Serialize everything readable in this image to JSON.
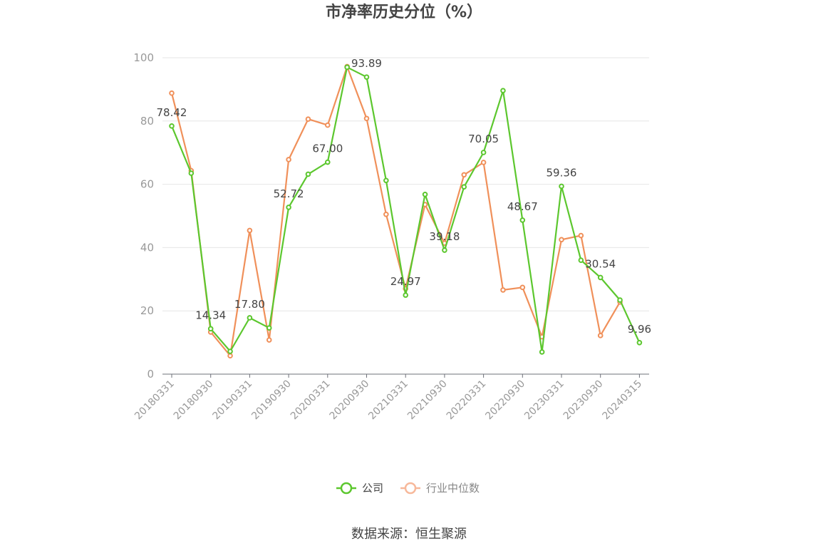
{
  "chart_data": {
    "type": "line",
    "title": "市净率历史分位（%）",
    "source": "数据来源：恒生聚源",
    "ylim": [
      0,
      100
    ],
    "y_ticks": [
      0,
      20,
      40,
      60,
      80,
      100
    ],
    "grid": true,
    "legend_position": "bottom",
    "x_tick_labels": [
      "20180331",
      "20180930",
      "20190331",
      "20190930",
      "20200331",
      "20200930",
      "20210331",
      "20210930",
      "20220331",
      "20220930",
      "20230331",
      "20230930",
      "20240315"
    ],
    "x_count": 25,
    "series": [
      {
        "name": "公司",
        "color": "#5cc72e",
        "values": [
          78.42,
          63.5,
          14.34,
          7.2,
          17.8,
          14.6,
          52.72,
          63.2,
          67.0,
          97.0,
          93.89,
          61.2,
          24.97,
          56.8,
          39.18,
          59.2,
          70.05,
          89.6,
          48.67,
          7.0,
          59.36,
          36.0,
          30.54,
          23.4,
          9.96
        ],
        "labels": [
          "78.42",
          "",
          "14.34",
          "",
          "17.80",
          "",
          "52.72",
          "",
          "67.00",
          "",
          "93.89",
          "",
          "24.97",
          "",
          "39.18",
          "",
          "70.05",
          "",
          "48.67",
          "",
          "59.36",
          "",
          "30.54",
          "",
          "9.96"
        ]
      },
      {
        "name": "行业中位数",
        "color": "#f0905a",
        "values": [
          88.8,
          64.3,
          13.3,
          5.8,
          45.4,
          10.8,
          67.8,
          80.6,
          78.7,
          97.2,
          80.8,
          50.5,
          27.0,
          53.6,
          41.4,
          63.0,
          66.9,
          26.6,
          27.4,
          11.8,
          42.5,
          43.8,
          12.2,
          22.8,
          null
        ]
      }
    ]
  }
}
